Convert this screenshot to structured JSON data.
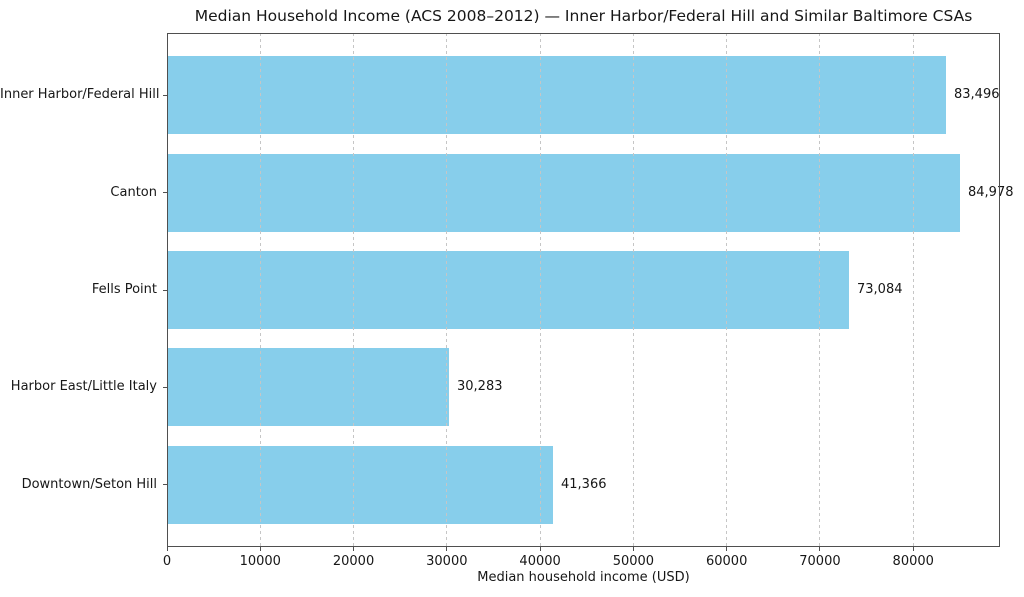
{
  "chart_data": {
    "type": "bar",
    "orientation": "horizontal",
    "title": "Median Household Income (ACS 2008–2012) — Inner Harbor/Federal Hill and Similar Baltimore CSAs",
    "xlabel": "Median household income (USD)",
    "ylabel": "",
    "categories": [
      "Inner Harbor/Federal Hill",
      "Canton",
      "Fells Point",
      "Harbor East/Little Italy",
      "Downtown/Seton Hill"
    ],
    "values": [
      83496,
      84978,
      73084,
      30283,
      41366
    ],
    "value_labels": [
      "83,496",
      "84,978",
      "73,084",
      "30,283",
      "41,366"
    ],
    "xlim": [
      0,
      89300
    ],
    "xticks": [
      0,
      10000,
      20000,
      30000,
      40000,
      50000,
      60000,
      70000,
      80000
    ],
    "xtick_labels": [
      "0",
      "10000",
      "20000",
      "30000",
      "40000",
      "50000",
      "60000",
      "70000",
      "80000"
    ],
    "grid": "vertical-dashed",
    "legend": "none",
    "bar_color": "#87ceeb",
    "grid_color": "#c6c6c6",
    "spine_color": "#4f4f4f",
    "text_color": "#171717",
    "background": "#ffffff"
  }
}
